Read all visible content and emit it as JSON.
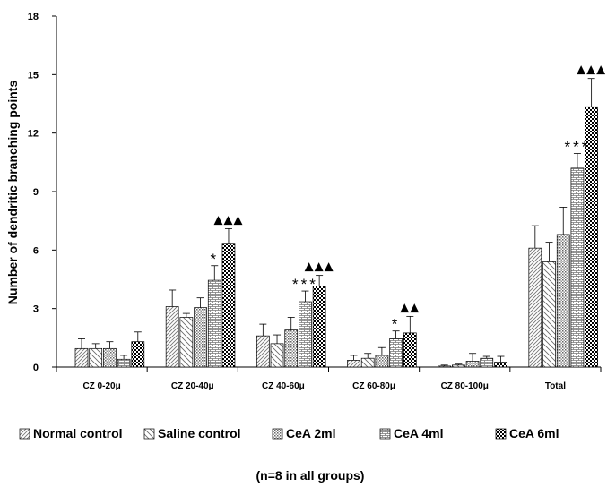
{
  "chart_data": {
    "type": "bar",
    "ylabel": "Number of dendritic branching points",
    "xlabel": "",
    "ylim": [
      0,
      18
    ],
    "yticks": [
      0,
      3,
      6,
      9,
      12,
      15,
      18
    ],
    "categories": [
      "CZ 0-20μ",
      "CZ 20-40μ",
      "CZ 40-60μ",
      "CZ 60-80μ",
      "CZ 80-100μ",
      "Total"
    ],
    "series": [
      {
        "name": "Normal control",
        "pattern": "diag-right",
        "values": [
          0.95,
          3.1,
          1.6,
          0.35,
          0.05,
          6.1
        ],
        "errors": [
          0.5,
          0.85,
          0.6,
          0.25,
          0.05,
          1.15
        ]
      },
      {
        "name": "Saline control",
        "pattern": "diag-left",
        "values": [
          0.95,
          2.55,
          1.2,
          0.45,
          0.1,
          5.4
        ],
        "errors": [
          0.25,
          0.2,
          0.45,
          0.25,
          0.05,
          1.0
        ]
      },
      {
        "name": "CeA 2ml",
        "pattern": "dots",
        "values": [
          0.95,
          3.05,
          1.9,
          0.6,
          0.3,
          6.8
        ],
        "errors": [
          0.35,
          0.5,
          0.65,
          0.4,
          0.4,
          1.4
        ]
      },
      {
        "name": "CeA 4ml",
        "pattern": "bricks",
        "values": [
          0.4,
          4.45,
          3.35,
          1.45,
          0.45,
          10.2
        ],
        "errors": [
          0.2,
          0.75,
          0.55,
          0.4,
          0.1,
          0.75
        ]
      },
      {
        "name": "CeA 6ml",
        "pattern": "checker",
        "values": [
          1.3,
          6.35,
          4.15,
          1.75,
          0.25,
          13.35
        ],
        "errors": [
          0.5,
          0.75,
          0.55,
          0.85,
          0.3,
          1.45
        ]
      }
    ],
    "annotations": [
      {
        "category": 1,
        "series": 3,
        "text": "*"
      },
      {
        "category": 1,
        "series": 4,
        "text": "▲▲▲"
      },
      {
        "category": 2,
        "series": 3,
        "text": "***"
      },
      {
        "category": 2,
        "series": 4,
        "text": "▲▲▲"
      },
      {
        "category": 3,
        "series": 3,
        "text": "*"
      },
      {
        "category": 3,
        "series": 4,
        "text": "▲▲"
      },
      {
        "category": 5,
        "series": 3,
        "text": "***"
      },
      {
        "category": 5,
        "series": 4,
        "text": "▲▲▲"
      }
    ],
    "legend_position": "bottom",
    "footnote": "(n=8 in all groups)"
  }
}
